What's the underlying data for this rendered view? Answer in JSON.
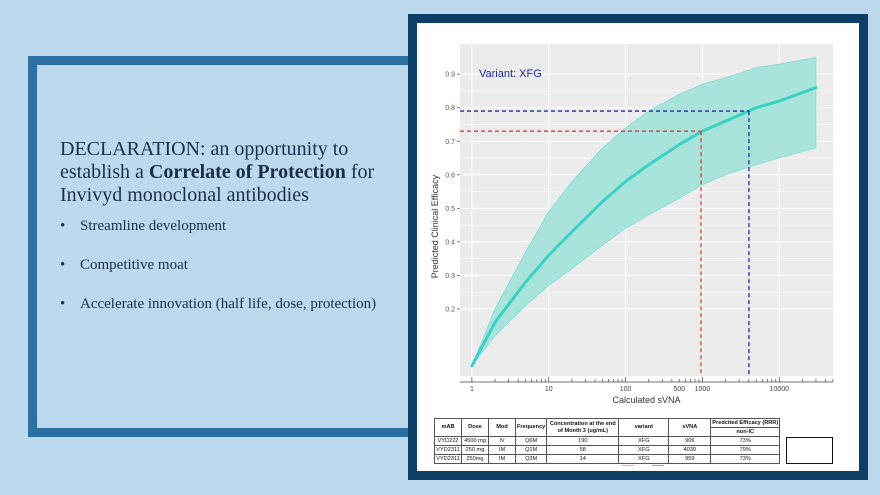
{
  "slide": {
    "heading_pre": "DECLARATION: an opportunity to establish a ",
    "heading_bold": "Correlate of Protection",
    "heading_post": " for Invivyd monoclonal antibodies",
    "bullets": [
      "Streamline development",
      "Competitive moat",
      "Accelerate innovation (half life, dose, protection)"
    ]
  },
  "colors": {
    "band": "#a8e3db",
    "curve": "#3ad1c2",
    "red": "#e23a3a",
    "blue": "#1f2a9c",
    "panel": "#ebebeb",
    "grid": "#ffffff"
  },
  "chart_data": {
    "type": "line",
    "x_scale": "log",
    "xlabel": "Calculated sVNA",
    "ylabel": "Predicted Clinical Efficacy",
    "annotation": "Variant: XFG",
    "xlim": [
      0.7,
      50000
    ],
    "ylim": [
      0.0,
      0.99
    ],
    "x_ticks": [
      1,
      10,
      100,
      500,
      1000,
      10000
    ],
    "x_tick_labels": [
      "1",
      "10",
      "100",
      "500",
      "1000",
      "10000"
    ],
    "y_ticks": [
      0.2,
      0.3,
      0.4,
      0.5,
      0.6,
      0.7,
      0.8,
      0.9
    ],
    "y_tick_labels": [
      "0.2",
      "0.3",
      "0.4",
      "0.5",
      "0.6",
      "0.7",
      "0.8",
      "0.9"
    ],
    "series": [
      {
        "name": "fit",
        "x": [
          1,
          2,
          5,
          10,
          20,
          50,
          100,
          200,
          500,
          1000,
          2000,
          5000,
          10000,
          30000
        ],
        "y": [
          0.03,
          0.16,
          0.28,
          0.36,
          0.43,
          0.52,
          0.58,
          0.63,
          0.69,
          0.73,
          0.76,
          0.8,
          0.82,
          0.86
        ]
      },
      {
        "name": "upper",
        "x": [
          1,
          2,
          5,
          10,
          20,
          50,
          100,
          200,
          500,
          1000,
          2000,
          5000,
          10000,
          30000
        ],
        "y": [
          0.03,
          0.2,
          0.37,
          0.49,
          0.58,
          0.68,
          0.74,
          0.79,
          0.84,
          0.87,
          0.89,
          0.92,
          0.93,
          0.95
        ]
      },
      {
        "name": "lower",
        "x": [
          1,
          2,
          5,
          10,
          20,
          50,
          100,
          200,
          500,
          1000,
          2000,
          5000,
          10000,
          30000
        ],
        "y": [
          0.03,
          0.12,
          0.21,
          0.27,
          0.32,
          0.39,
          0.44,
          0.48,
          0.53,
          0.57,
          0.6,
          0.63,
          0.65,
          0.68
        ]
      }
    ],
    "reference_lines": [
      {
        "color": "red",
        "x": 959,
        "y": 0.73
      },
      {
        "color": "blue",
        "x": 4030,
        "y": 0.79
      }
    ]
  },
  "table": {
    "headers": [
      "mAB",
      "Dose",
      "Mod",
      "Frequency",
      "Concentration at the end of Month 3 (ug/mL)",
      "variant",
      "sVNA",
      "Predcited Efficacy (RRR)"
    ],
    "subheader": "non-IC",
    "rows": [
      [
        "VYD222",
        "4500 mg",
        "IV",
        "Q6M",
        "190",
        "XFG",
        "906",
        "73%"
      ],
      [
        "VYD2311",
        "250 mg",
        "IM",
        "Q1M",
        "58",
        "XFG",
        "4030",
        "79%"
      ],
      [
        "VYD2311",
        "250mg",
        "IM",
        "Q3M",
        "14",
        "XFG",
        "959",
        "73%"
      ]
    ]
  }
}
